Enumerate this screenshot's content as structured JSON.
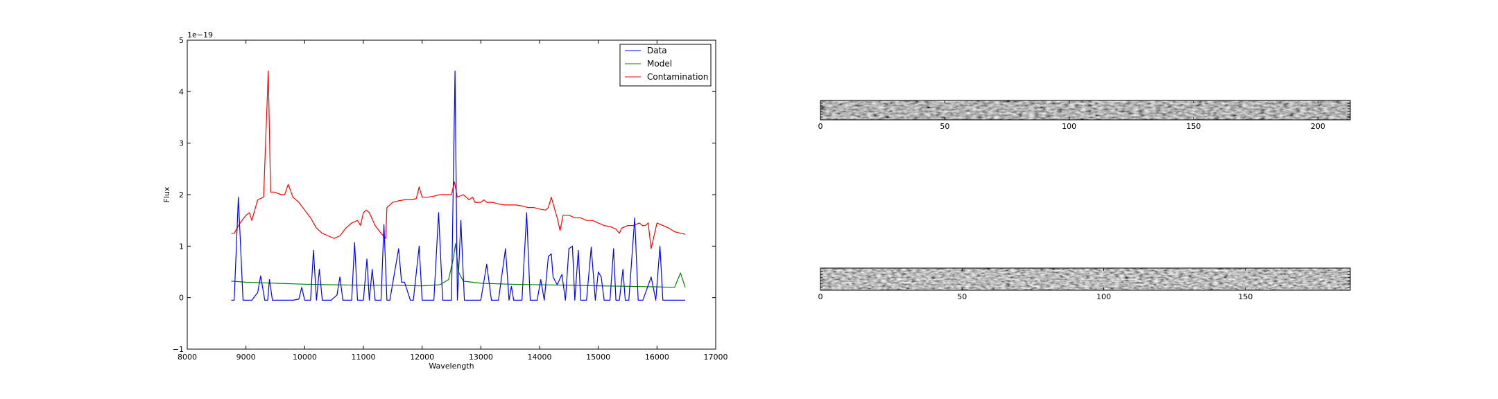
{
  "chart_data": [
    {
      "type": "line",
      "title": "",
      "xlabel": "Wavelength",
      "ylabel": "Flux",
      "offset_label": "1e−19",
      "xlim": [
        8000,
        17000
      ],
      "ylim": [
        -1,
        5
      ],
      "xticks": [
        "8000",
        "9000",
        "10000",
        "11000",
        "12000",
        "13000",
        "14000",
        "15000",
        "16000",
        "17000"
      ],
      "yticks": [
        "−1",
        "0",
        "1",
        "2",
        "3",
        "4",
        "5"
      ],
      "legend_position": "top-right",
      "grid": false,
      "colors": {
        "Data": "#0000ff",
        "Model": "#008000",
        "Contamination": "#ff0000"
      },
      "series": [
        {
          "name": "Data",
          "x": [
            8750,
            8800,
            8870,
            8950,
            9100,
            9200,
            9250,
            9320,
            9370,
            9400,
            9450,
            9800,
            9900,
            9950,
            10000,
            10050,
            10100,
            10150,
            10200,
            10250,
            10300,
            10450,
            10550,
            10600,
            10650,
            10800,
            10850,
            10900,
            11000,
            11060,
            11100,
            11150,
            11200,
            11300,
            11350,
            11400,
            11450,
            11600,
            11650,
            11700,
            11800,
            11850,
            11950,
            12000,
            12050,
            12200,
            12280,
            12350,
            12400,
            12500,
            12560,
            12600,
            12660,
            12720,
            12760,
            12800,
            13000,
            13100,
            13180,
            13240,
            13300,
            13420,
            13480,
            13520,
            13560,
            13700,
            13780,
            13840,
            13960,
            14020,
            14080,
            14150,
            14200,
            14230,
            14300,
            14380,
            14440,
            14500,
            14560,
            14600,
            14660,
            14700,
            14800,
            14880,
            14950,
            15000,
            15050,
            15100,
            15200,
            15260,
            15300,
            15360,
            15420,
            15460,
            15520,
            15620,
            15680,
            15700,
            15760,
            15900,
            15980,
            16050,
            16100,
            16480
          ],
          "y": [
            -0.05,
            -0.05,
            1.95,
            -0.05,
            -0.05,
            0.1,
            0.42,
            -0.05,
            -0.05,
            0.35,
            -0.05,
            -0.05,
            -0.03,
            0.2,
            -0.05,
            -0.05,
            -0.05,
            0.92,
            -0.05,
            0.55,
            -0.05,
            -0.05,
            0.05,
            0.4,
            -0.05,
            -0.05,
            1.07,
            -0.05,
            -0.05,
            0.75,
            -0.05,
            0.55,
            -0.05,
            -0.05,
            1.42,
            -0.05,
            -0.05,
            0.95,
            0.3,
            0.3,
            -0.05,
            -0.05,
            1.0,
            -0.05,
            -0.05,
            -0.05,
            1.65,
            -0.05,
            -0.05,
            -0.05,
            4.4,
            -0.05,
            1.5,
            -0.05,
            -0.05,
            -0.05,
            -0.05,
            0.65,
            -0.05,
            -0.05,
            -0.05,
            0.95,
            -0.05,
            0.22,
            -0.05,
            -0.05,
            1.65,
            -0.05,
            -0.05,
            0.35,
            -0.05,
            0.8,
            0.85,
            0.4,
            0.25,
            0.45,
            -0.05,
            0.95,
            1.0,
            -0.05,
            0.92,
            -0.05,
            -0.05,
            0.98,
            -0.05,
            0.5,
            0.4,
            -0.05,
            -0.05,
            0.95,
            -0.05,
            -0.05,
            0.55,
            -0.05,
            -0.05,
            1.55,
            -0.05,
            -0.05,
            -0.05,
            0.4,
            -0.05,
            1.0,
            -0.05,
            -0.05
          ]
        },
        {
          "name": "Model",
          "x": [
            8750,
            9000,
            9500,
            10000,
            10500,
            11000,
            11500,
            12000,
            12300,
            12450,
            12530,
            12570,
            12620,
            12700,
            13000,
            13500,
            14000,
            14500,
            15000,
            15500,
            16000,
            16300,
            16400,
            16480
          ],
          "y": [
            0.32,
            0.3,
            0.28,
            0.26,
            0.25,
            0.24,
            0.24,
            0.23,
            0.25,
            0.35,
            0.75,
            1.05,
            0.5,
            0.32,
            0.28,
            0.26,
            0.25,
            0.24,
            0.23,
            0.22,
            0.21,
            0.2,
            0.48,
            0.2
          ]
        },
        {
          "name": "Contamination",
          "x": [
            8750,
            8800,
            8900,
            9000,
            9060,
            9100,
            9200,
            9300,
            9380,
            9420,
            9480,
            9600,
            9660,
            9720,
            9800,
            9900,
            10000,
            10100,
            10200,
            10300,
            10400,
            10500,
            10600,
            10700,
            10800,
            10900,
            10950,
            11000,
            11050,
            11100,
            11200,
            11300,
            11380,
            11400,
            11500,
            11600,
            11700,
            11800,
            11900,
            11950,
            12000,
            12100,
            12200,
            12300,
            12400,
            12500,
            12550,
            12600,
            12700,
            12800,
            12860,
            12900,
            13000,
            13050,
            13100,
            13200,
            13300,
            13400,
            13500,
            13600,
            13700,
            13800,
            13900,
            14000,
            14100,
            14150,
            14200,
            14300,
            14350,
            14400,
            14500,
            14600,
            14700,
            14800,
            14900,
            15000,
            15100,
            15200,
            15300,
            15360,
            15400,
            15500,
            15600,
            15700,
            15750,
            15800,
            15850,
            15900,
            16000,
            16100,
            16200,
            16300,
            16400,
            16480
          ],
          "y": [
            1.25,
            1.25,
            1.45,
            1.6,
            1.65,
            1.5,
            1.9,
            1.95,
            4.4,
            2.05,
            2.05,
            2.0,
            2.0,
            2.2,
            1.95,
            1.85,
            1.7,
            1.55,
            1.35,
            1.25,
            1.2,
            1.15,
            1.2,
            1.35,
            1.45,
            1.5,
            1.4,
            1.65,
            1.7,
            1.65,
            1.4,
            1.25,
            1.15,
            1.75,
            1.85,
            1.88,
            1.9,
            1.9,
            1.92,
            2.15,
            1.95,
            1.95,
            1.97,
            2.0,
            2.0,
            2.0,
            2.25,
            1.95,
            2.0,
            1.9,
            1.95,
            1.85,
            1.85,
            1.9,
            1.85,
            1.85,
            1.82,
            1.8,
            1.8,
            1.8,
            1.78,
            1.75,
            1.75,
            1.72,
            1.7,
            1.75,
            1.95,
            1.55,
            1.3,
            1.6,
            1.6,
            1.55,
            1.55,
            1.5,
            1.5,
            1.45,
            1.4,
            1.38,
            1.33,
            1.25,
            1.35,
            1.4,
            1.4,
            1.45,
            1.4,
            1.4,
            1.45,
            0.95,
            1.45,
            1.4,
            1.35,
            1.28,
            1.25,
            1.23
          ]
        }
      ]
    },
    {
      "type": "heatmap",
      "xlim": [
        0,
        213
      ],
      "ylim": [
        0,
        7
      ],
      "xticks": [
        "0",
        "50",
        "100",
        "150",
        "200"
      ],
      "colormap": "gray"
    },
    {
      "type": "heatmap",
      "xlim": [
        0,
        187
      ],
      "ylim": [
        0,
        7
      ],
      "xticks": [
        "0",
        "50",
        "100",
        "150"
      ],
      "colormap": "gray"
    }
  ]
}
